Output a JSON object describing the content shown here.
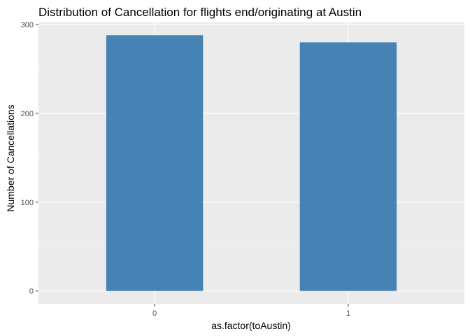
{
  "chart_data": {
    "type": "bar",
    "title": "Distribution of Cancellation for flights end/originating at Austin",
    "xlabel": "as.factor(toAustin)",
    "ylabel": "Number of Cancellations",
    "categories": [
      "0",
      "1"
    ],
    "values": [
      288,
      280
    ],
    "ylim": [
      -14.4,
      302.4
    ],
    "yticks": [
      0,
      100,
      200,
      300
    ],
    "grid": true,
    "legend": "none",
    "colors": {
      "bar": "#4682b4",
      "panel": "#ebebeb",
      "grid_major": "#ffffff",
      "grid_minor": "#f5f5f5"
    }
  }
}
